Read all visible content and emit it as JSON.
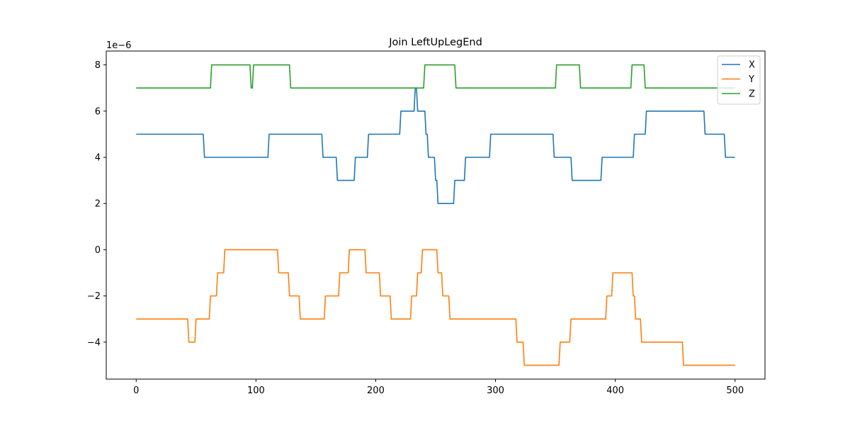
{
  "chart_data": {
    "type": "line",
    "title": "Join LeftUpLegEnd",
    "xlabel": "",
    "ylabel": "",
    "offset_text": "1e−6",
    "xlim": [
      -25,
      525
    ],
    "ylim": [
      -5.6,
      8.6
    ],
    "x_ticks": [
      0,
      100,
      200,
      300,
      400,
      500
    ],
    "y_ticks": [
      -4,
      -2,
      0,
      2,
      4,
      6,
      8
    ],
    "y_tick_labels": [
      "−4",
      "−2",
      "0",
      "2",
      "4",
      "6",
      "8"
    ],
    "grid": false,
    "legend_position": "top-right",
    "series": [
      {
        "name": "X",
        "color": "#1f77b4",
        "points": [
          [
            0,
            5
          ],
          [
            56,
            5
          ],
          [
            57,
            4
          ],
          [
            110,
            4
          ],
          [
            111,
            5
          ],
          [
            155,
            5
          ],
          [
            156,
            4
          ],
          [
            167,
            4
          ],
          [
            168,
            3
          ],
          [
            182,
            3
          ],
          [
            183,
            4
          ],
          [
            193,
            4
          ],
          [
            194,
            5
          ],
          [
            220,
            5
          ],
          [
            221,
            6
          ],
          [
            232,
            6
          ],
          [
            233,
            7
          ],
          [
            234,
            7
          ],
          [
            235,
            6
          ],
          [
            241,
            6
          ],
          [
            242,
            5
          ],
          [
            243,
            5
          ],
          [
            244,
            4
          ],
          [
            249,
            4
          ],
          [
            250,
            3
          ],
          [
            251,
            3
          ],
          [
            252,
            2
          ],
          [
            265,
            2
          ],
          [
            266,
            3
          ],
          [
            274,
            3
          ],
          [
            275,
            4
          ],
          [
            295,
            4
          ],
          [
            296,
            5
          ],
          [
            348,
            5
          ],
          [
            349,
            4
          ],
          [
            363,
            4
          ],
          [
            364,
            3
          ],
          [
            388,
            3
          ],
          [
            389,
            4
          ],
          [
            415,
            4
          ],
          [
            416,
            5
          ],
          [
            425,
            5
          ],
          [
            426,
            6
          ],
          [
            474,
            6
          ],
          [
            475,
            5
          ],
          [
            491,
            5
          ],
          [
            492,
            4
          ],
          [
            500,
            4
          ]
        ]
      },
      {
        "name": "Y",
        "color": "#ff7f0e",
        "points": [
          [
            0,
            -3
          ],
          [
            43,
            -3
          ],
          [
            44,
            -4
          ],
          [
            49,
            -4
          ],
          [
            50,
            -3
          ],
          [
            61,
            -3
          ],
          [
            62,
            -2
          ],
          [
            67,
            -2
          ],
          [
            68,
            -1
          ],
          [
            73,
            -1
          ],
          [
            74,
            0
          ],
          [
            118,
            0
          ],
          [
            119,
            -1
          ],
          [
            127,
            -1
          ],
          [
            128,
            -2
          ],
          [
            136,
            -2
          ],
          [
            137,
            -3
          ],
          [
            157,
            -3
          ],
          [
            158,
            -2
          ],
          [
            169,
            -2
          ],
          [
            170,
            -1
          ],
          [
            177,
            -1
          ],
          [
            178,
            0
          ],
          [
            191,
            0
          ],
          [
            192,
            -1
          ],
          [
            203,
            -1
          ],
          [
            204,
            -2
          ],
          [
            212,
            -2
          ],
          [
            213,
            -3
          ],
          [
            229,
            -3
          ],
          [
            230,
            -2
          ],
          [
            234,
            -2
          ],
          [
            235,
            -1
          ],
          [
            238,
            -1
          ],
          [
            239,
            0
          ],
          [
            251,
            0
          ],
          [
            252,
            -1
          ],
          [
            255,
            -1
          ],
          [
            256,
            -2
          ],
          [
            261,
            -2
          ],
          [
            262,
            -3
          ],
          [
            317,
            -3
          ],
          [
            318,
            -4
          ],
          [
            323,
            -4
          ],
          [
            324,
            -5
          ],
          [
            353,
            -5
          ],
          [
            354,
            -4
          ],
          [
            362,
            -4
          ],
          [
            363,
            -3
          ],
          [
            392,
            -3
          ],
          [
            393,
            -2
          ],
          [
            397,
            -2
          ],
          [
            398,
            -1
          ],
          [
            414,
            -1
          ],
          [
            415,
            -2
          ],
          [
            416,
            -2
          ],
          [
            417,
            -3
          ],
          [
            421,
            -3
          ],
          [
            422,
            -4
          ],
          [
            456,
            -4
          ],
          [
            457,
            -5
          ],
          [
            500,
            -5
          ]
        ]
      },
      {
        "name": "Z",
        "color": "#2ca02c",
        "points": [
          [
            0,
            7
          ],
          [
            62,
            7
          ],
          [
            63,
            8
          ],
          [
            95,
            8
          ],
          [
            96,
            7
          ],
          [
            97,
            7
          ],
          [
            98,
            8
          ],
          [
            128,
            8
          ],
          [
            129,
            7
          ],
          [
            240,
            7
          ],
          [
            241,
            8
          ],
          [
            266,
            8
          ],
          [
            267,
            7
          ],
          [
            350,
            7
          ],
          [
            351,
            8
          ],
          [
            370,
            8
          ],
          [
            371,
            7
          ],
          [
            413,
            7
          ],
          [
            414,
            8
          ],
          [
            424,
            8
          ],
          [
            425,
            7
          ],
          [
            500,
            7
          ]
        ]
      }
    ]
  }
}
